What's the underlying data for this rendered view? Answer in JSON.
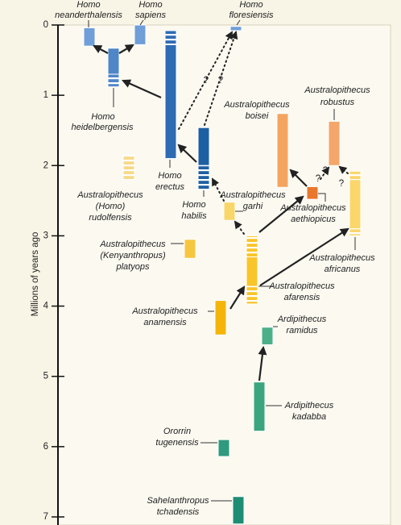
{
  "chart_data": {
    "type": "timeline",
    "y_axis_label": "Millions of years ago",
    "ylim": [
      0,
      7.1
    ],
    "yticks": [
      0,
      1,
      2,
      3,
      4,
      5,
      6,
      7
    ],
    "question_marks": [
      "?",
      "?",
      "?",
      "?",
      "?"
    ],
    "species": [
      {
        "name": [
          "Homo",
          "neanderthalensis"
        ],
        "range": [
          0.04,
          0.3
        ],
        "color": "#6f9ed8"
      },
      {
        "name": [
          "Homo",
          "sapiens"
        ],
        "range": [
          0,
          0.28
        ],
        "color": "#6f9ed8"
      },
      {
        "name": [
          "Homo",
          "floresiensis"
        ],
        "range": [
          0.02,
          0.08
        ],
        "color": "#6f9ed8"
      },
      {
        "name": [
          "Homo",
          "heidelbergensis"
        ],
        "range": [
          0.33,
          0.88
        ],
        "solid": [
          0.33,
          0.7
        ],
        "color": "#4f86c8"
      },
      {
        "name": [
          "Homo",
          "erectus"
        ],
        "range": [
          0.08,
          1.9
        ],
        "solid": [
          0.28,
          1.9
        ],
        "color": "#2d6cb3"
      },
      {
        "name": [
          "Homo",
          "habilis"
        ],
        "range": [
          1.46,
          2.35
        ],
        "solid": [
          1.46,
          2.0
        ],
        "color": "#1d5fa3"
      },
      {
        "name": [
          "Australopithecus",
          "(Homo)",
          "rudolfensis"
        ],
        "range": [
          1.85,
          2.2
        ],
        "color": "#f6d98a"
      },
      {
        "name": [
          "Australopithecus",
          "(Kenyanthropus)",
          "platyops"
        ],
        "range": [
          3.05,
          3.32
        ],
        "color": "#f7c640"
      },
      {
        "name": [
          "Australopithecus",
          "garhi"
        ],
        "range": [
          2.52,
          2.78
        ],
        "color": "#f8d66a"
      },
      {
        "name": [
          "Australopithecus",
          "afarensis"
        ],
        "range": [
          3.0,
          3.97
        ],
        "solid": [
          3.3,
          3.72
        ],
        "color": "#f9c52a"
      },
      {
        "name": [
          "Australopithecus",
          "anamensis"
        ],
        "range": [
          3.92,
          4.41
        ],
        "color": "#f5b40a"
      },
      {
        "name": [
          "Ardipithecus",
          "ramidus"
        ],
        "range": [
          4.3,
          4.55
        ],
        "color": "#4bb08a"
      },
      {
        "name": [
          "Ardipithecus",
          "kadabba"
        ],
        "range": [
          5.08,
          5.78
        ],
        "color": "#3aa57f"
      },
      {
        "name": [
          "Ororrin",
          "tugenensis"
        ],
        "range": [
          5.9,
          6.14
        ],
        "color": "#2f9a7d"
      },
      {
        "name": [
          "Sahelanthropus",
          "tchadensis"
        ],
        "range": [
          6.71,
          7.1
        ],
        "color": "#1e8d74"
      },
      {
        "name": [
          "Australopithecus",
          "boisei"
        ],
        "range": [
          1.26,
          2.31
        ],
        "color": "#f4a45e"
      },
      {
        "name": [
          "Australopithecus",
          "robustus"
        ],
        "range": [
          1.37,
          2.0
        ],
        "color": "#f5a66a"
      },
      {
        "name": [
          "Australopithecus",
          "aethiopicus"
        ],
        "range": [
          2.3,
          2.48
        ],
        "color": "#e9772c"
      },
      {
        "name": [
          "Australopithecus",
          "africanus"
        ],
        "range": [
          2.08,
          3.0
        ],
        "solid": [
          2.2,
          2.9
        ],
        "color": "#fbd66b"
      }
    ]
  }
}
